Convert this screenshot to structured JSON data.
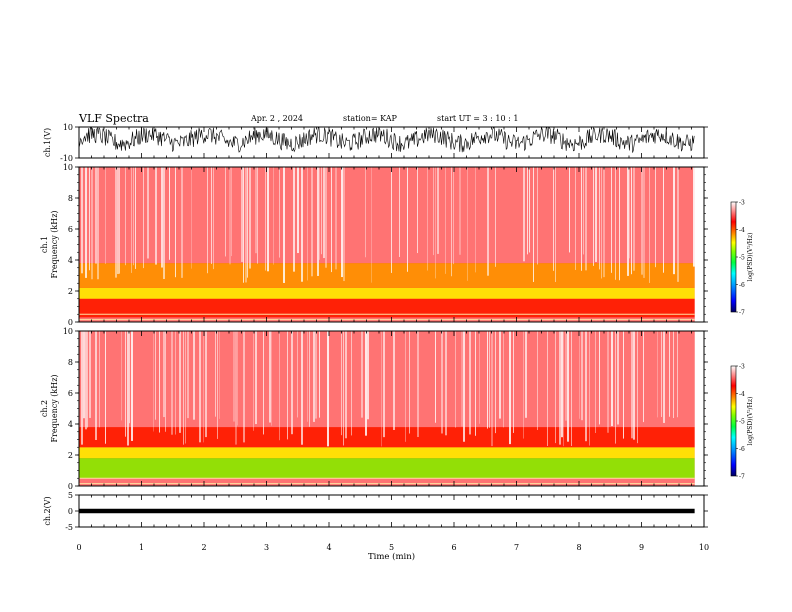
{
  "header": {
    "title": "VLF Spectra",
    "date": "Apr. 2 , 2024",
    "station": "station= KAP",
    "start": "start UT = 3 : 10 : 1"
  },
  "colors": {
    "colormap": [
      "#000080",
      "#0000ff",
      "#00a0ff",
      "#00ffff",
      "#00ff60",
      "#80ff00",
      "#ffff00",
      "#ffa000",
      "#ff2000",
      "#ff8080",
      "#ffffff"
    ],
    "spectrogram_base": "#ff2a2a",
    "axis": "#000000"
  },
  "chart_data": [
    {
      "type": "line",
      "panel": "ch1-waveform",
      "ylabel": "ch.1(V)",
      "ylim": [
        -10,
        10
      ],
      "yticks": [
        "10",
        "-10"
      ],
      "note_values": "dense waveform oscillating roughly between -8 and 9 V",
      "xlim": [
        0,
        10
      ]
    },
    {
      "type": "heatmap",
      "panel": "ch1-spectrogram",
      "ylabel": [
        "ch.1",
        "Frequency (kHz)"
      ],
      "ylim": [
        0,
        10
      ],
      "yticks": [
        "0",
        "2",
        "4",
        "6",
        "8",
        "10"
      ],
      "xlim": [
        0,
        9.85
      ],
      "bands": [
        {
          "f_low": 0,
          "f_high": 0.3,
          "level": -3.5
        },
        {
          "f_low": 0.3,
          "f_high": 1.5,
          "level": -3.7
        },
        {
          "f_low": 1.5,
          "f_high": 2.2,
          "level": -4.6
        },
        {
          "f_low": 2.2,
          "f_high": 3.8,
          "level": -4.1
        },
        {
          "f_low": 3.8,
          "f_high": 5.0,
          "level": -3.6
        },
        {
          "f_low": 5.0,
          "f_high": 10,
          "level": -3.3
        }
      ],
      "colorbar": {
        "label": "log(PSD)(V²/Hz)",
        "min": -7,
        "max": -3,
        "ticks": [
          "-3",
          "-4",
          "-5",
          "-6",
          "-7"
        ]
      }
    },
    {
      "type": "heatmap",
      "panel": "ch2-spectrogram",
      "ylabel": [
        "ch.2",
        "Frequency (kHz)"
      ],
      "ylim": [
        0,
        10
      ],
      "yticks": [
        "0",
        "2",
        "4",
        "6",
        "8",
        "10"
      ],
      "xlim": [
        0,
        9.85
      ],
      "bands": [
        {
          "f_low": 0,
          "f_high": 0.5,
          "level": -3.5
        },
        {
          "f_low": 0.5,
          "f_high": 1.8,
          "level": -5.2
        },
        {
          "f_low": 1.8,
          "f_high": 2.5,
          "level": -4.4
        },
        {
          "f_low": 2.5,
          "f_high": 3.8,
          "level": -3.9
        },
        {
          "f_low": 3.8,
          "f_high": 10,
          "level": -3.3
        }
      ],
      "colorbar": {
        "label": "log(PSD)(V²/Hz)",
        "min": -7,
        "max": -3,
        "ticks": [
          "-3",
          "-4",
          "-5",
          "-6",
          "-7"
        ]
      }
    },
    {
      "type": "line",
      "panel": "ch2-waveform",
      "ylabel": "ch.2(V)",
      "ylim": [
        -5,
        5
      ],
      "yticks": [
        "5",
        "0",
        "-5"
      ],
      "note_values": "dense waveform between about -0.8 and 0.8 V",
      "xlim": [
        0,
        10
      ]
    }
  ],
  "xaxis": {
    "label": "Time (min)",
    "ticks": [
      "0",
      "1",
      "2",
      "3",
      "4",
      "5",
      "6",
      "7",
      "8",
      "9",
      "10"
    ],
    "xlim": [
      0,
      10
    ]
  }
}
